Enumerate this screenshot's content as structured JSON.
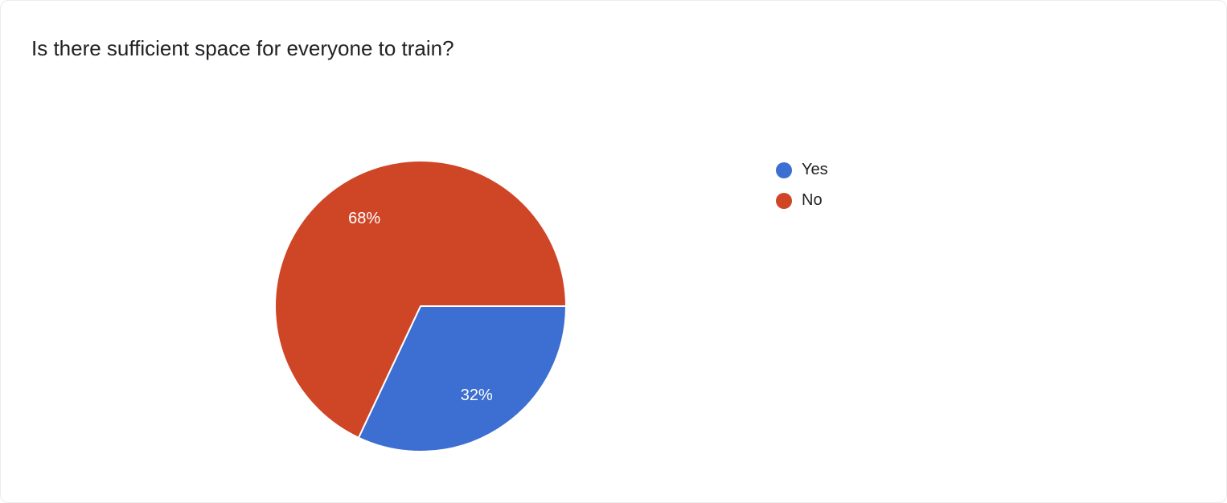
{
  "title": "Is there sufficient space for everyone to train?",
  "chart_data": {
    "type": "pie",
    "categories": [
      "Yes",
      "No"
    ],
    "values": [
      32,
      68
    ],
    "labels": [
      "32%",
      "68%"
    ],
    "colors": [
      "#3c6fd1",
      "#cf4627"
    ],
    "slice_border_color": "#ffffff",
    "label_color": "#ffffff",
    "title": "Is there sufficient space for everyone to train?",
    "legend_position": "right",
    "start_angle_deg": 0,
    "direction": "clockwise"
  },
  "legend": {
    "items": [
      {
        "label": "Yes",
        "color": "#3c6fd1"
      },
      {
        "label": "No",
        "color": "#cf4627"
      }
    ]
  }
}
